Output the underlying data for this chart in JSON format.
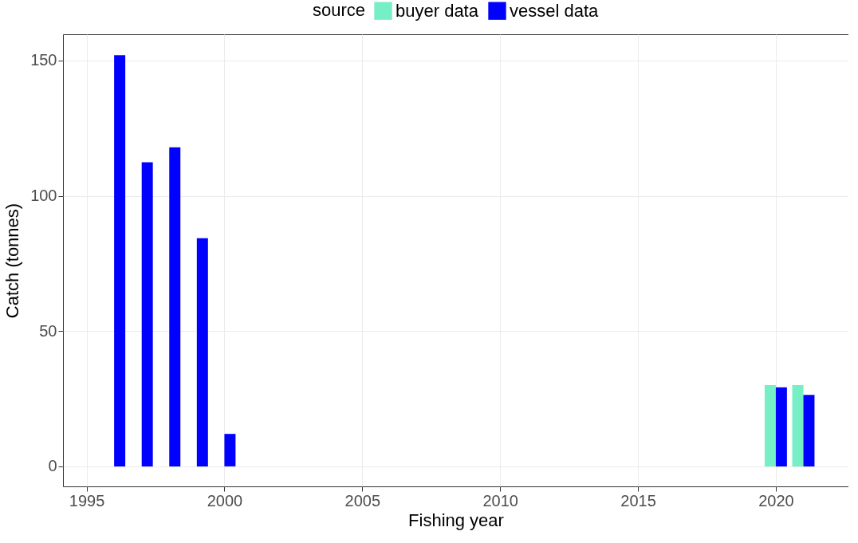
{
  "chart_data": {
    "type": "bar",
    "xlabel": "Fishing year",
    "ylabel": "Catch (tonnes)",
    "legend_title": "source",
    "legend": "top",
    "series": [
      {
        "name": "buyer data",
        "color": "#76eec6",
        "x": [
          2020,
          2021
        ],
        "values": [
          30,
          30
        ]
      },
      {
        "name": "vessel data",
        "color": "#0000ff",
        "x": [
          1996,
          1997,
          1998,
          1999,
          2000,
          2020,
          2021
        ],
        "values": [
          152,
          112.4,
          117.9,
          84.3,
          12,
          29.2,
          26.4
        ]
      }
    ],
    "xlim": [
      1994.29,
      2022.49
    ],
    "xticks": [
      1995,
      2000,
      2005,
      2010,
      2015,
      2020
    ],
    "ylim": [
      -7.4,
      159.7
    ],
    "yticks": [
      0,
      50,
      100,
      150
    ],
    "grid": true
  }
}
